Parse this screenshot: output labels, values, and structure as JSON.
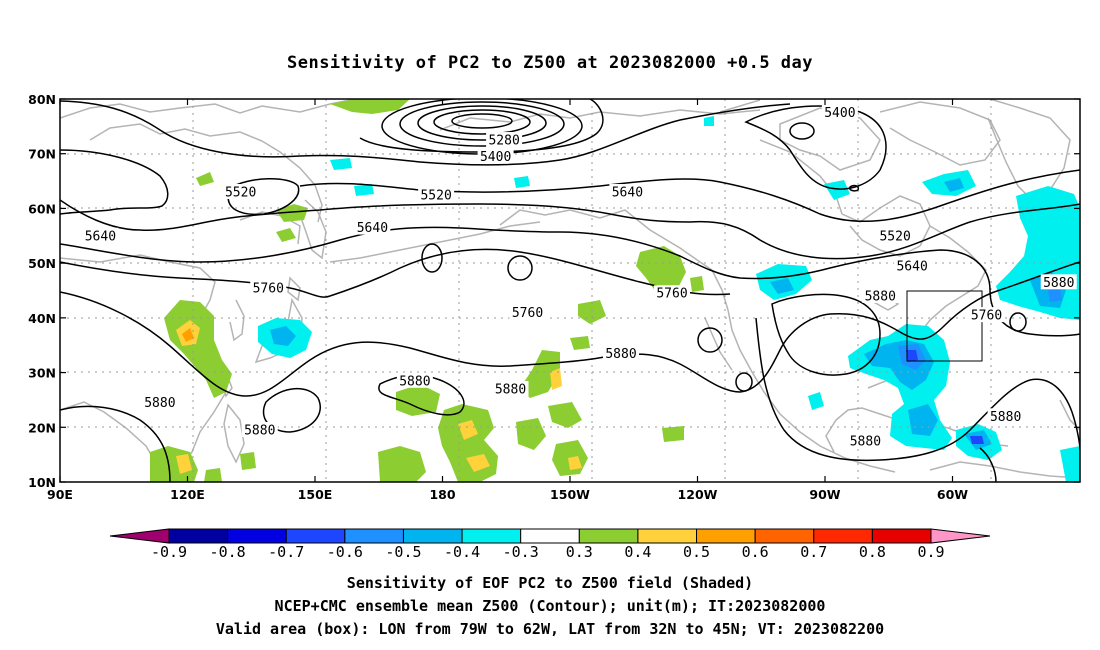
{
  "title": "Sensitivity of PC2 to Z500 at 2023082000 +0.5 day",
  "x_ticks": [
    {
      "lon": 90,
      "label": "90E"
    },
    {
      "lon": 120,
      "label": "120E"
    },
    {
      "lon": 150,
      "label": "150E"
    },
    {
      "lon": 180,
      "label": "180"
    },
    {
      "lon": 210,
      "label": "150W"
    },
    {
      "lon": 240,
      "label": "120W"
    },
    {
      "lon": 270,
      "label": "90W"
    },
    {
      "lon": 300,
      "label": "60W"
    }
  ],
  "y_ticks": [
    {
      "lat": 80,
      "label": "80N"
    },
    {
      "lat": 70,
      "label": "70N"
    },
    {
      "lat": 60,
      "label": "60N"
    },
    {
      "lat": 50,
      "label": "50N"
    },
    {
      "lat": 40,
      "label": "40N"
    },
    {
      "lat": 30,
      "label": "30N"
    },
    {
      "lat": 20,
      "label": "20N"
    },
    {
      "lat": 10,
      "label": "10N"
    }
  ],
  "contour_labels": [
    {
      "text": "5400",
      "lon": 273.5,
      "lat": 77.5
    },
    {
      "text": "5280",
      "lon": 194.5,
      "lat": 72.5
    },
    {
      "text": "5400",
      "lon": 192.5,
      "lat": 69.5
    },
    {
      "text": "5520",
      "lon": 132.5,
      "lat": 63.0
    },
    {
      "text": "5520",
      "lon": 178.5,
      "lat": 62.5
    },
    {
      "text": "5640",
      "lon": 223.5,
      "lat": 63.0
    },
    {
      "text": "5520",
      "lon": 286.5,
      "lat": 55.0
    },
    {
      "text": "5640",
      "lon": 99.5,
      "lat": 55.0
    },
    {
      "text": "5640",
      "lon": 163.5,
      "lat": 56.5
    },
    {
      "text": "5640",
      "lon": 290.5,
      "lat": 49.5
    },
    {
      "text": "5880",
      "lon": 325.0,
      "lat": 46.5
    },
    {
      "text": "5760",
      "lon": 139.0,
      "lat": 45.5
    },
    {
      "text": "5760",
      "lon": 234.0,
      "lat": 44.5
    },
    {
      "text": "5880",
      "lon": 283.0,
      "lat": 44.0
    },
    {
      "text": "5760",
      "lon": 308.0,
      "lat": 40.5
    },
    {
      "text": "5760",
      "lon": 200.0,
      "lat": 41.0
    },
    {
      "text": "5880",
      "lon": 222.0,
      "lat": 33.5
    },
    {
      "text": "5880",
      "lon": 173.5,
      "lat": 28.5
    },
    {
      "text": "5880",
      "lon": 196.0,
      "lat": 27.0
    },
    {
      "text": "5880",
      "lon": 113.5,
      "lat": 24.5
    },
    {
      "text": "5880",
      "lon": 137.0,
      "lat": 19.5
    },
    {
      "text": "5880",
      "lon": 312.5,
      "lat": 22.0
    },
    {
      "text": "5880",
      "lon": 279.5,
      "lat": 17.5
    }
  ],
  "colorbar": {
    "colors": [
      "#a0006e",
      "#0000a0",
      "#0000e0",
      "#1e46ff",
      "#1e90ff",
      "#00b4f0",
      "#00f0f0",
      "#ffffff",
      "#8ccd32",
      "#ffd23c",
      "#ffa000",
      "#ff6400",
      "#ff2800",
      "#e60000",
      "#ff96c8"
    ],
    "labels": [
      "-0.9",
      "-0.8",
      "-0.7",
      "-0.6",
      "-0.5",
      "-0.4",
      "-0.3",
      "0.3",
      "0.4",
      "0.5",
      "0.6",
      "0.7",
      "0.8",
      "0.9"
    ]
  },
  "footer": {
    "line1": "Sensitivity of EOF PC2 to Z500 field (Shaded)",
    "line2": "NCEP+CMC ensemble mean Z500 (Contour); unit(m); IT:2023082000",
    "line3": "Valid area (box): LON from 79W to 62W, LAT from 32N to 45N; VT: 2023082200"
  },
  "valid_box": {
    "lon_min": 281,
    "lon_max": 298,
    "lat_min": 32,
    "lat_max": 45
  }
}
